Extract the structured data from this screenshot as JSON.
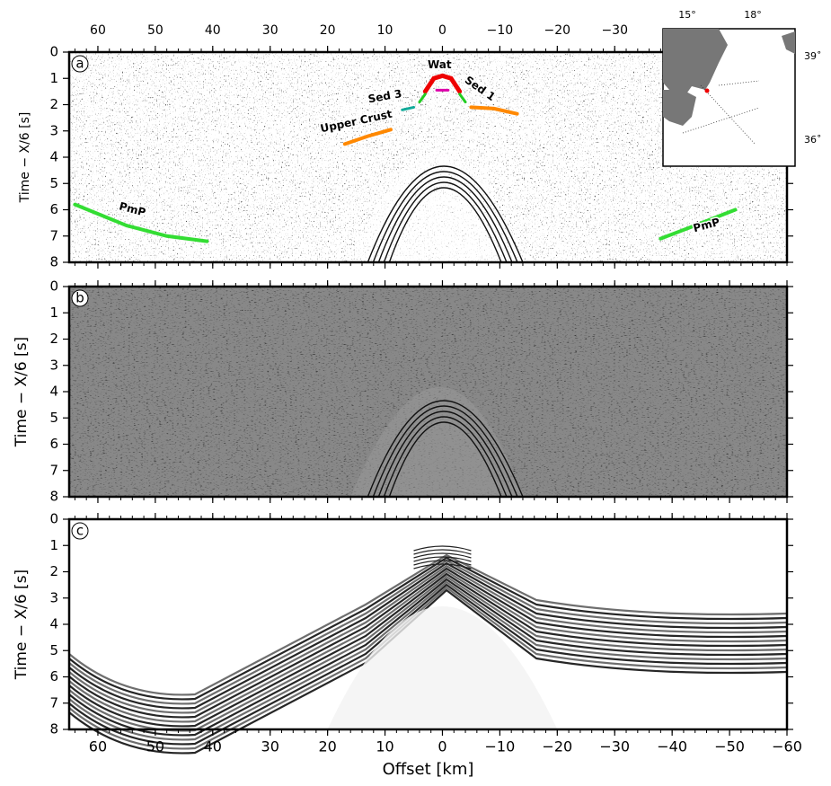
{
  "chart_data": [
    {
      "type": "seismic",
      "panel": "a",
      "ylabel": "Time − X/6 [s]",
      "xlim": [
        65,
        -60
      ],
      "ylim": [
        0,
        8
      ],
      "y_inverted": true,
      "xtick_labels": "top",
      "xticks": [
        60,
        50,
        40,
        30,
        20,
        10,
        0,
        {
          "value": -10,
          "label": "−10"
        },
        {
          "value": -20,
          "label": "−20"
        },
        {
          "value": -30,
          "label": "−30"
        }
      ],
      "yticks": [
        0,
        1,
        2,
        3,
        4,
        5,
        6,
        7,
        8
      ],
      "annotations": [
        "Wat",
        "Sed 1",
        "Sed 3",
        "Upper Crust",
        "PmP",
        "PmP"
      ]
    },
    {
      "type": "seismic",
      "panel": "b",
      "ylabel": "Time − X/6 [s]",
      "xlim": [
        65,
        -60
      ],
      "ylim": [
        0,
        8
      ],
      "y_inverted": true,
      "xtick_labels": "none",
      "xticks": [
        60,
        50,
        40,
        30,
        20,
        10,
        0,
        -10,
        -20,
        -30,
        -40,
        -50,
        -60
      ],
      "yticks": [
        0,
        1,
        2,
        3,
        4,
        5,
        6,
        7,
        8
      ]
    },
    {
      "type": "seismic",
      "panel": "c",
      "ylabel": "Time − X/6 [s]",
      "xlabel": "Offset [km]",
      "xlim": [
        65,
        -60
      ],
      "ylim": [
        0,
        8
      ],
      "y_inverted": true,
      "xtick_labels": "bottom",
      "xticks": [
        60,
        50,
        40,
        30,
        20,
        10,
        0,
        {
          "value": -10,
          "label": "−10"
        },
        {
          "value": -20,
          "label": "−20"
        },
        {
          "value": -30,
          "label": "−30"
        },
        {
          "value": -40,
          "label": "−40"
        },
        {
          "value": -50,
          "label": "−50"
        },
        {
          "value": -60,
          "label": "−60"
        }
      ],
      "yticks": [
        0,
        1,
        2,
        3,
        4,
        5,
        6,
        7,
        8
      ]
    }
  ],
  "inset": {
    "lon_labels": [
      "15°",
      "18°"
    ],
    "lat_labels": [
      "39˚",
      "36˚"
    ]
  }
}
